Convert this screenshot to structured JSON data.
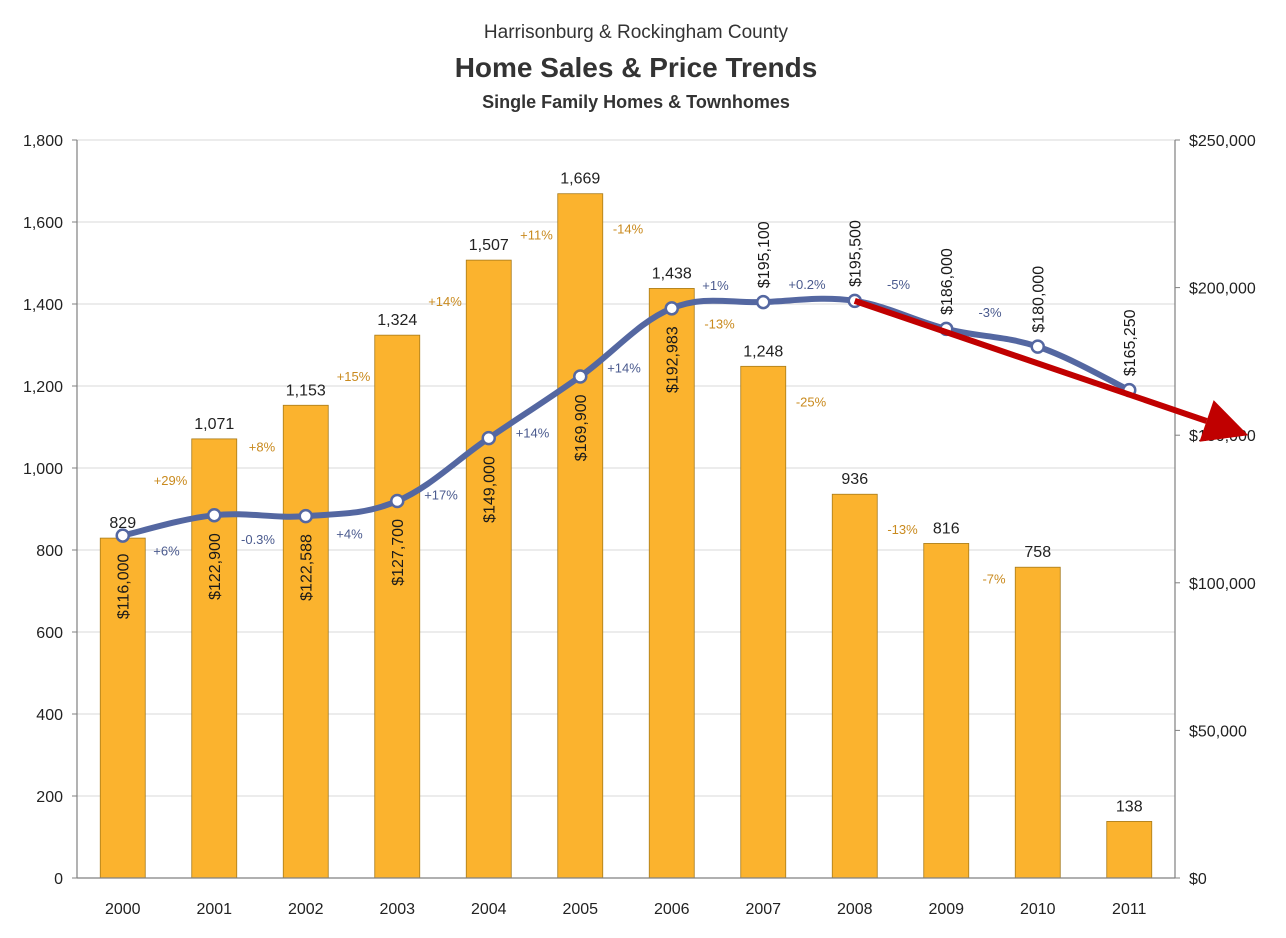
{
  "chart_data": {
    "type": "bar",
    "title": "Home Sales & Price Trends",
    "supertitle": "Harrisonburg & Rockingham County",
    "subtitle": "Single Family Homes & Townhomes",
    "categories": [
      "2000",
      "2001",
      "2002",
      "2003",
      "2004",
      "2005",
      "2006",
      "2007",
      "2008",
      "2009",
      "2010",
      "2011"
    ],
    "series": [
      {
        "type": "bar",
        "axis": "left",
        "values": [
          829,
          1071,
          1153,
          1324,
          1507,
          1669,
          1438,
          1248,
          936,
          816,
          758,
          138
        ],
        "labels": [
          "829",
          "1,071",
          "1,153",
          "1,324",
          "1,507",
          "1,669",
          "1,438",
          "1,248",
          "936",
          "816",
          "758",
          "138"
        ],
        "change_labels": [
          "+29%",
          "+8%",
          "+15%",
          "+14%",
          "+11%",
          "-14%",
          "-13%",
          "-25%",
          "-13%",
          "-7%"
        ],
        "color": "#fbb32e"
      },
      {
        "type": "line",
        "axis": "right",
        "values": [
          116000,
          122900,
          122588,
          127700,
          149000,
          169900,
          192983,
          195100,
          195500,
          186000,
          180000,
          165250
        ],
        "labels": [
          "$116,000",
          "$122,900",
          "$122,588",
          "$127,700",
          "$149,000",
          "$169,900",
          "$192,983",
          "$195,100",
          "$195,500",
          "$186,000",
          "$180,000",
          "$165,250"
        ],
        "change_labels": [
          "+6%",
          "-0.3%",
          "+4%",
          "+17%",
          "+14%",
          "+14%",
          "+1%",
          "+0.2%",
          "-5%",
          "-3%"
        ],
        "color": "#5467a1"
      }
    ],
    "y_left": {
      "lim": [
        0,
        1800
      ],
      "ticks": [
        "0",
        "200",
        "400",
        "600",
        "800",
        "1,000",
        "1,200",
        "1,400",
        "1,600",
        "1,800"
      ]
    },
    "y_right": {
      "lim": [
        0,
        250000
      ],
      "ticks": [
        "$0",
        "$50,000",
        "$100,000",
        "$150,000",
        "$200,000",
        "$250,000"
      ]
    },
    "trend_arrow": {
      "from": [
        "2008",
        195500
      ],
      "to_beyond": [
        "2011",
        150000
      ],
      "color": "#c00000"
    },
    "grid": true,
    "colors": {
      "bar": "#fbb32e",
      "line": "#5467a1",
      "bar_change": "#c98a1e",
      "line_change": "#4a5a8e",
      "arrow": "#c00000",
      "grid": "#d9d9d9"
    }
  }
}
